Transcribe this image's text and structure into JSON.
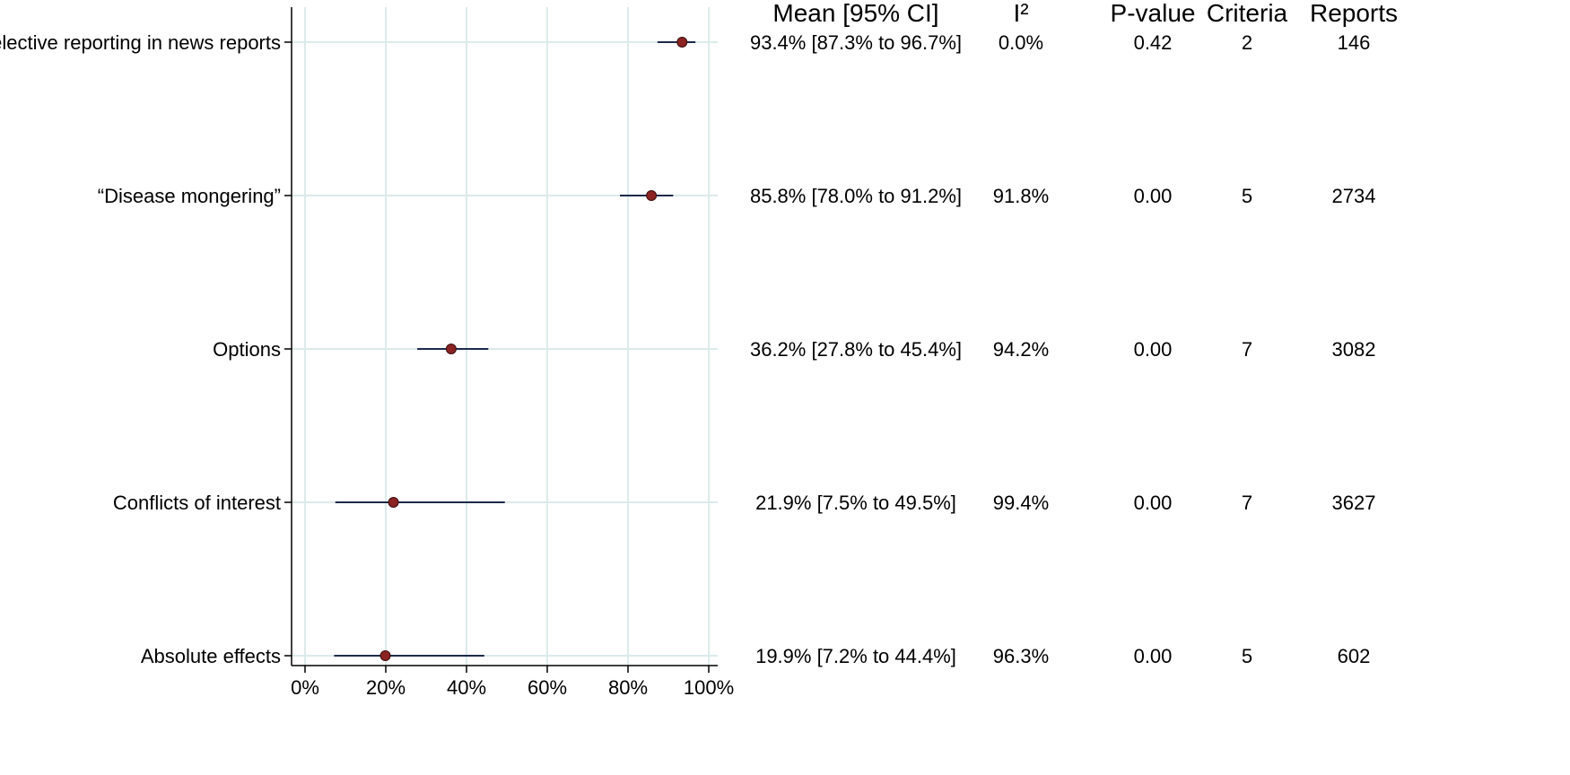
{
  "chart_data": {
    "type": "forest",
    "xlim": [
      0,
      100
    ],
    "x_ticks": [
      "0%",
      "20%",
      "40%",
      "60%",
      "80%",
      "100%"
    ],
    "x_tick_values": [
      0,
      20,
      40,
      60,
      80,
      100
    ],
    "grid": true,
    "columns": [
      "Mean [95% CI]",
      "I²",
      "P-value",
      "Criteria",
      "Reports"
    ],
    "rows": [
      {
        "label": "Selective reporting in news reports",
        "mean": 93.4,
        "ci_low": 87.3,
        "ci_high": 96.7,
        "mean_ci": "93.4% [87.3% to 96.7%]",
        "i2": "0.0%",
        "p_value": "0.42",
        "criteria": "2",
        "reports": "146"
      },
      {
        "label": "“Disease mongering”",
        "mean": 85.8,
        "ci_low": 78.0,
        "ci_high": 91.2,
        "mean_ci": "85.8% [78.0% to 91.2%]",
        "i2": "91.8%",
        "p_value": "0.00",
        "criteria": "5",
        "reports": "2734"
      },
      {
        "label": "Options",
        "mean": 36.2,
        "ci_low": 27.8,
        "ci_high": 45.4,
        "mean_ci": "36.2% [27.8% to 45.4%]",
        "i2": "94.2%",
        "p_value": "0.00",
        "criteria": "7",
        "reports": "3082"
      },
      {
        "label": "Conflicts of interest",
        "mean": 21.9,
        "ci_low": 7.5,
        "ci_high": 49.5,
        "mean_ci": "21.9% [7.5% to 49.5%]",
        "i2": "99.4%",
        "p_value": "0.00",
        "criteria": "7",
        "reports": "3627"
      },
      {
        "label": "Absolute effects",
        "mean": 19.9,
        "ci_low": 7.2,
        "ci_high": 44.4,
        "mean_ci": "19.9% [7.2% to 44.4%]",
        "i2": "96.3%",
        "p_value": "0.00",
        "criteria": "5",
        "reports": "602"
      }
    ],
    "colors": {
      "point_fill": "#8b2323",
      "point_stroke": "#3a0d0d",
      "ci_line": "#1c2a4a",
      "grid": "#dceaea",
      "axis": "#000000"
    }
  }
}
